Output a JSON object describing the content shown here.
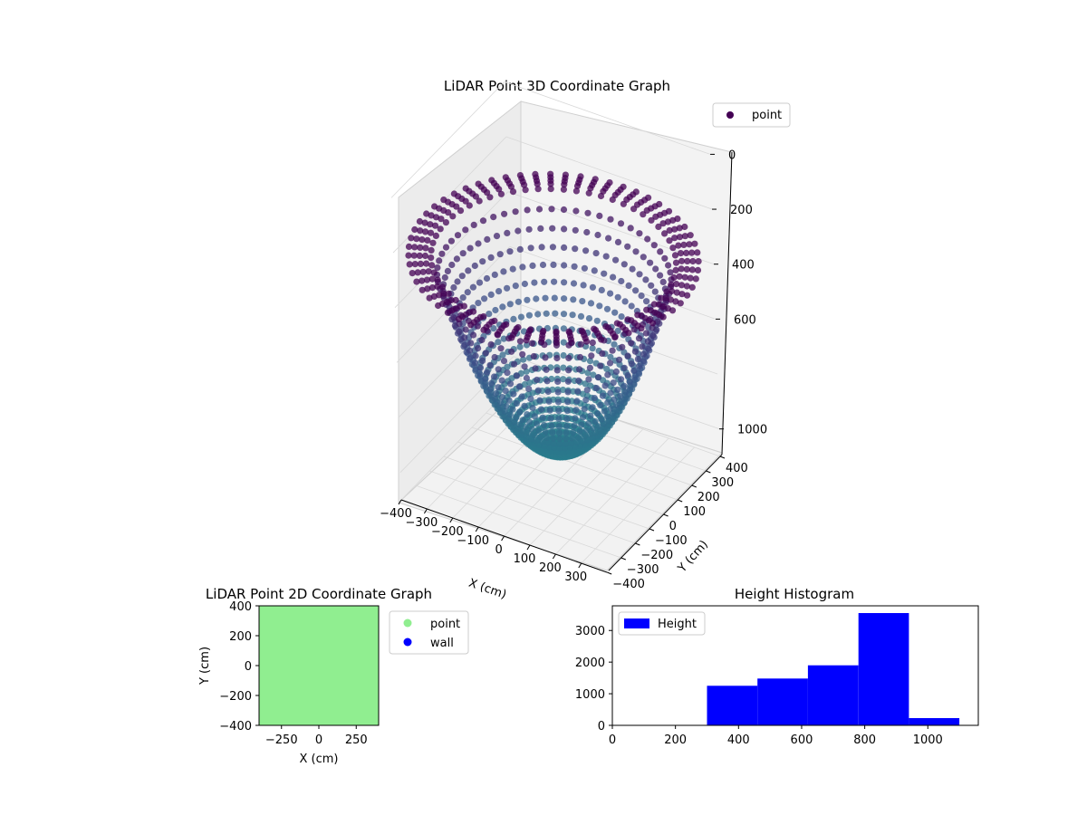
{
  "chart_data": [
    {
      "type": "scatter",
      "projection": "3d",
      "title": "LiDAR Point 3D Coordinate Graph",
      "xlabel": "X (cm)",
      "ylabel": "Y (cm)",
      "zlabel": "",
      "xlim": [
        -400,
        400
      ],
      "ylim": [
        -400,
        400
      ],
      "zlim": [
        0,
        1100
      ],
      "z_inverted": true,
      "x_ticks": [
        "−400",
        "−300",
        "−200",
        "−100",
        "0",
        "100",
        "200",
        "300"
      ],
      "y_ticks": [
        "−400",
        "−300",
        "−200",
        "−100",
        "0",
        "100",
        "200",
        "300",
        "400"
      ],
      "z_ticks": [
        "0",
        "200",
        "400",
        "600",
        "1000"
      ],
      "series": [
        {
          "name": "point",
          "colormap": "viridis",
          "color_legend": "#440154",
          "shape": "bowl",
          "rim_height": 1000,
          "bottom_height": 300
        }
      ],
      "legend_position": "top-right",
      "grid": true
    },
    {
      "type": "scatter",
      "title": "LiDAR Point 2D Coordinate Graph",
      "xlabel": "X (cm)",
      "ylabel": "Y (cm)",
      "xlim": [
        -400,
        400
      ],
      "ylim": [
        -400,
        400
      ],
      "x_ticks": [
        "−250",
        "0",
        "250"
      ],
      "y_ticks": [
        "400",
        "200",
        "0",
        "−200",
        "−400"
      ],
      "series": [
        {
          "name": "point",
          "color": "#90ee90"
        },
        {
          "name": "wall",
          "color": "#0000ff"
        }
      ],
      "legend_position": "outside-right"
    },
    {
      "type": "bar",
      "title": "Height Histogram",
      "xlabel": "",
      "ylabel": "",
      "xlim": [
        0,
        1160
      ],
      "ylim": [
        0,
        3780
      ],
      "x_ticks": [
        "0",
        "200",
        "400",
        "600",
        "800",
        "1000"
      ],
      "y_ticks": [
        "0",
        "1000",
        "2000",
        "3000"
      ],
      "bins": [
        {
          "start": 300,
          "end": 460,
          "count": 1250
        },
        {
          "start": 460,
          "end": 620,
          "count": 1480
        },
        {
          "start": 620,
          "end": 780,
          "count": 1900
        },
        {
          "start": 780,
          "end": 940,
          "count": 3550
        },
        {
          "start": 940,
          "end": 1100,
          "count": 230
        }
      ],
      "series": [
        {
          "name": "Height",
          "color": "#0000ff"
        }
      ],
      "legend_position": "top-left"
    }
  ]
}
